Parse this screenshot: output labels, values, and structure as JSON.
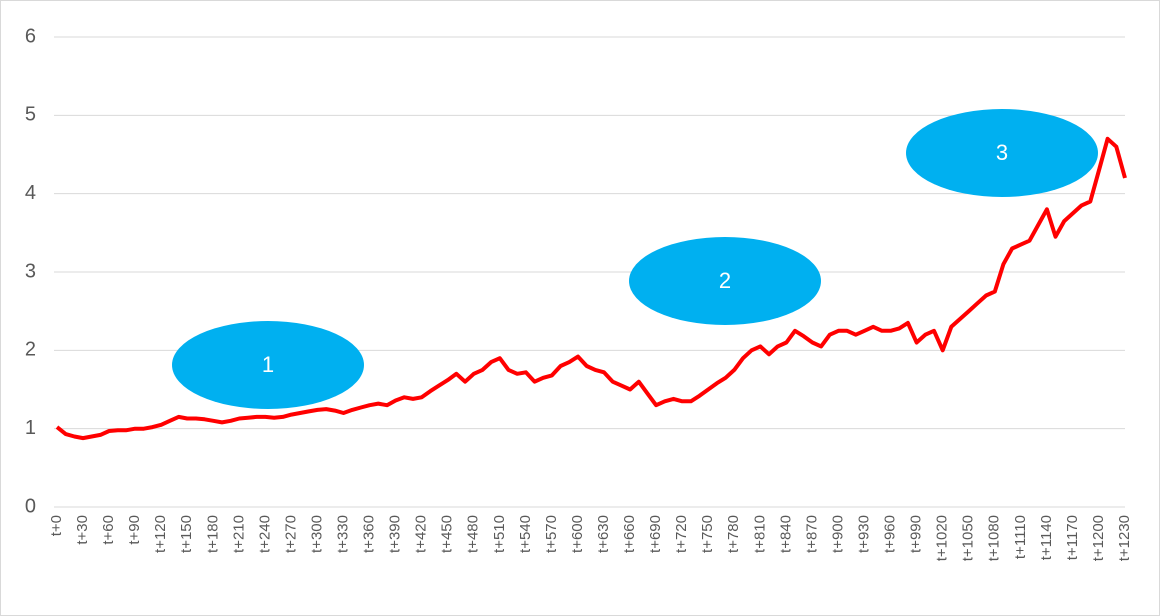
{
  "chart_data": {
    "type": "line",
    "categories": [
      "t+0",
      null,
      null,
      "t+30",
      null,
      null,
      "t+60",
      null,
      null,
      "t+90",
      null,
      null,
      "t+120",
      null,
      null,
      "t+150",
      null,
      null,
      "t+180",
      null,
      null,
      "t+210",
      null,
      null,
      "t+240",
      null,
      null,
      "t+270",
      null,
      null,
      "t+300",
      null,
      null,
      "t+330",
      null,
      null,
      "t+360",
      null,
      null,
      "t+390",
      null,
      null,
      "t+420",
      null,
      null,
      "t+450",
      null,
      null,
      "t+480",
      null,
      null,
      "t+510",
      null,
      null,
      "t+540",
      null,
      null,
      "t+570",
      null,
      null,
      "t+600",
      null,
      null,
      "t+630",
      null,
      null,
      "t+660",
      null,
      null,
      "t+690",
      null,
      null,
      "t+720",
      null,
      null,
      "t+750",
      null,
      null,
      "t+780",
      null,
      null,
      "t+810",
      null,
      null,
      "t+840",
      null,
      null,
      "t+870",
      null,
      null,
      "t+900",
      null,
      null,
      "t+930",
      null,
      null,
      "t+960",
      null,
      null,
      "t+990",
      null,
      null,
      "t+1020",
      null,
      null,
      "t+1050",
      null,
      null,
      "t+1080",
      null,
      null,
      "t+1110",
      null,
      null,
      "t+1140",
      null,
      null,
      "t+1170",
      null,
      null,
      "t+1200",
      null,
      null,
      "t+1230"
    ],
    "series": [
      {
        "color": "#ff0000",
        "values": [
          1.02,
          0.93,
          0.9,
          0.88,
          0.9,
          0.92,
          0.97,
          0.98,
          0.98,
          1.0,
          1.0,
          1.02,
          1.05,
          1.1,
          1.15,
          1.13,
          1.13,
          1.12,
          1.1,
          1.08,
          1.1,
          1.13,
          1.14,
          1.15,
          1.15,
          1.14,
          1.15,
          1.18,
          1.2,
          1.22,
          1.24,
          1.25,
          1.23,
          1.2,
          1.24,
          1.27,
          1.3,
          1.32,
          1.3,
          1.36,
          1.4,
          1.38,
          1.4,
          1.48,
          1.55,
          1.62,
          1.7,
          1.6,
          1.7,
          1.75,
          1.85,
          1.9,
          1.75,
          1.7,
          1.72,
          1.6,
          1.65,
          1.68,
          1.8,
          1.85,
          1.92,
          1.8,
          1.75,
          1.72,
          1.6,
          1.55,
          1.5,
          1.6,
          1.45,
          1.3,
          1.35,
          1.38,
          1.35,
          1.35,
          1.42,
          1.5,
          1.58,
          1.65,
          1.75,
          1.9,
          2.0,
          2.05,
          1.95,
          2.05,
          2.1,
          2.25,
          2.18,
          2.1,
          2.05,
          2.2,
          2.25,
          2.25,
          2.2,
          2.25,
          2.3,
          2.25,
          2.25,
          2.28,
          2.35,
          2.1,
          2.2,
          2.25,
          2.0,
          2.3,
          2.4,
          2.5,
          2.6,
          2.7,
          2.75,
          3.1,
          3.3,
          3.35,
          3.4,
          3.6,
          3.8,
          3.45,
          3.65,
          3.75,
          3.85,
          3.9,
          4.3,
          4.7,
          4.6,
          4.2
        ]
      }
    ],
    "ylim": [
      0,
      6
    ],
    "yticks": [
      0,
      1,
      2,
      3,
      4,
      5,
      6
    ],
    "grid": true,
    "annotations": [
      "1",
      "2",
      "3"
    ]
  }
}
